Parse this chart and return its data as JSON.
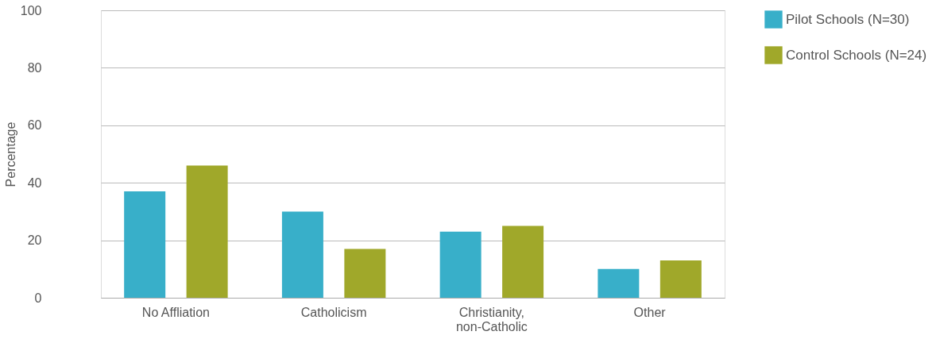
{
  "chart_data": {
    "type": "bar",
    "ylabel": "Percentage",
    "categories": [
      "No Affliation",
      "Catholicism",
      "Christianity, non-Catholic",
      "Other"
    ],
    "series": [
      {
        "name": "Pilot Schools (N=30)",
        "color": "#38afc9",
        "values": [
          37,
          30,
          23,
          10
        ]
      },
      {
        "name": "Control Schools (N=24)",
        "color": "#a0a82a",
        "values": [
          46,
          17,
          25,
          13
        ]
      }
    ],
    "ylim": [
      0,
      100
    ],
    "yticks": [
      0,
      20,
      40,
      60,
      80,
      100
    ],
    "grid": "y",
    "legend": "right"
  }
}
